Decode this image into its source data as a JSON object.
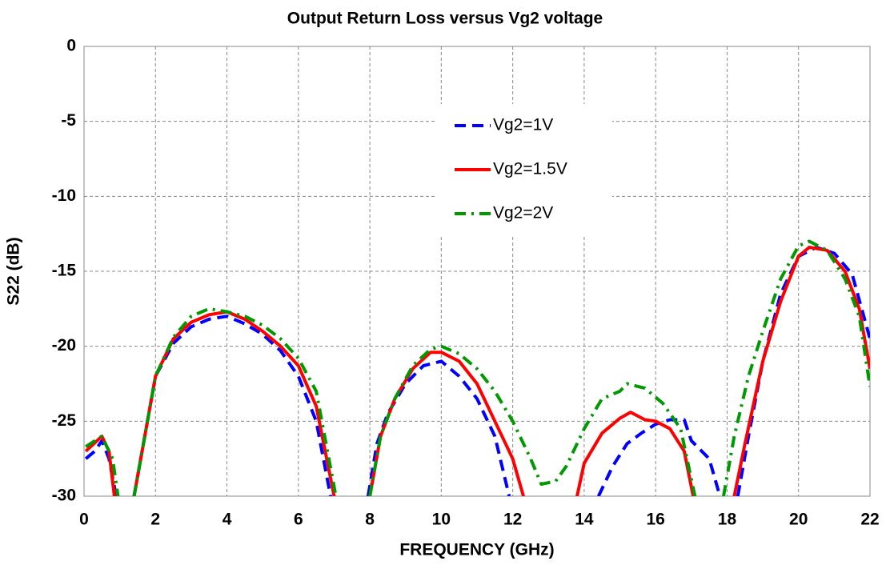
{
  "chart_data": {
    "type": "line",
    "title": "Output Return Loss versus Vg2 voltage",
    "xlabel": "FREQUENCY (GHz)",
    "ylabel": "S22 (dB)",
    "xlim": [
      0,
      22
    ],
    "xticks": [
      0,
      2,
      4,
      6,
      8,
      10,
      12,
      14,
      16,
      18,
      20,
      22
    ],
    "ylim": [
      -30,
      0
    ],
    "yticks": [
      0,
      -5,
      -10,
      -15,
      -20,
      -25,
      -30
    ],
    "grid": true,
    "legend": "upper center",
    "series": [
      {
        "name": "Vg2=1V",
        "color": "#0000ff",
        "style": "dashed",
        "x": [
          0.05,
          0.3,
          0.5,
          0.7,
          0.9,
          null,
          1.4,
          1.7,
          2,
          2.5,
          3,
          3.5,
          4,
          4.5,
          5,
          5.5,
          6,
          6.5,
          6.9,
          null,
          7.95,
          8.2,
          8.5,
          9,
          9.5,
          10,
          10.5,
          11,
          11.5,
          11.9,
          null,
          14.4,
          14.8,
          15.2,
          15.6,
          16,
          16.4,
          16.8,
          17,
          17.5,
          17.8,
          null,
          18.3,
          18.6,
          19,
          19.5,
          20,
          20.5,
          21,
          21.5,
          22
        ],
        "values": [
          -27.5,
          -27,
          -26.3,
          -27.5,
          -30,
          null,
          -30,
          -26,
          -22,
          -19.8,
          -18.7,
          -18.2,
          -18,
          -18.5,
          -19.2,
          -20.3,
          -22,
          -25,
          -30,
          null,
          -30,
          -26.5,
          -24.5,
          -22.5,
          -21.3,
          -21,
          -22,
          -23.5,
          -26,
          -30,
          null,
          -30,
          -28,
          -26.5,
          -25.8,
          -25.2,
          -24.9,
          -24.9,
          -26.3,
          -27.5,
          -30,
          null,
          -30,
          -26,
          -21,
          -16.5,
          -14,
          -13.4,
          -13.8,
          -15.2,
          -19.5
        ]
      },
      {
        "name": "Vg2=1.5V",
        "color": "#ff0000",
        "style": "solid",
        "x": [
          0.05,
          0.5,
          0.7,
          0.85,
          null,
          1.4,
          1.7,
          2,
          2.5,
          3,
          3.5,
          4,
          4.5,
          5,
          5.5,
          6,
          6.5,
          7,
          null,
          8,
          8.3,
          8.7,
          9.2,
          9.7,
          10,
          10.5,
          11,
          11.5,
          12,
          12.3,
          null,
          13.8,
          14,
          14.5,
          15,
          15.3,
          15.7,
          16,
          16.4,
          16.8,
          17.05,
          null,
          18.2,
          18.5,
          19,
          19.5,
          20,
          20.3,
          20.8,
          21.3,
          21.7,
          22
        ],
        "values": [
          -27,
          -26,
          -27,
          -30,
          null,
          -30,
          -26,
          -22,
          -19.5,
          -18.4,
          -17.9,
          -17.7,
          -18.2,
          -19,
          -20,
          -21.3,
          -24,
          -30,
          null,
          -30,
          -26,
          -23.5,
          -21.5,
          -20.4,
          -20.4,
          -21,
          -22.5,
          -25,
          -27.5,
          -30,
          null,
          -30,
          -27.8,
          -25.8,
          -24.8,
          -24.4,
          -24.9,
          -25,
          -25.5,
          -27,
          -30,
          null,
          -30,
          -26.5,
          -21,
          -17,
          -14,
          -13.4,
          -13.6,
          -15,
          -17.5,
          -21.5
        ]
      },
      {
        "name": "Vg2=2V",
        "color": "#009900",
        "style": "dashdot",
        "x": [
          0.05,
          0.5,
          0.8,
          0.95,
          null,
          1.4,
          1.7,
          2,
          2.5,
          3,
          3.5,
          4,
          4.5,
          5,
          5.5,
          6,
          6.5,
          7.05,
          null,
          8,
          8.3,
          8.7,
          9.2,
          9.7,
          10,
          10.5,
          11,
          11.5,
          12,
          12.5,
          12.8,
          13.2,
          13.5,
          14,
          14.5,
          15,
          15.2,
          15.7,
          16.2,
          16.7,
          17.1,
          null,
          17.9,
          18.2,
          18.6,
          19,
          19.5,
          20,
          20.3,
          20.8,
          21.3,
          21.7,
          22
        ],
        "values": [
          -26.7,
          -26,
          -27.5,
          -30,
          null,
          -30,
          -26,
          -22,
          -19.4,
          -18,
          -17.5,
          -17.7,
          -18,
          -18.6,
          -19.5,
          -20.8,
          -23,
          -30,
          null,
          -30,
          -26,
          -23.5,
          -21.3,
          -20.2,
          -20,
          -20.5,
          -21.5,
          -23,
          -25,
          -27.5,
          -29.2,
          -29,
          -28,
          -25.5,
          -23.5,
          -23,
          -22.5,
          -22.8,
          -23.8,
          -25.5,
          -30,
          null,
          -30,
          -26,
          -22,
          -19,
          -15.5,
          -13.3,
          -13,
          -13.6,
          -15.5,
          -18,
          -22.7
        ]
      }
    ]
  }
}
